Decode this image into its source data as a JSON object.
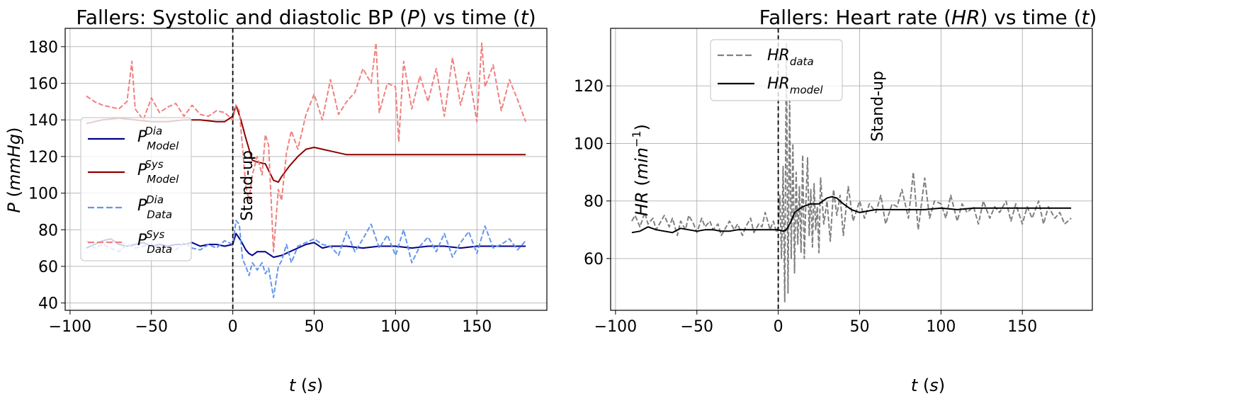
{
  "chart_data": [
    {
      "type": "line",
      "title": "Fallers: Systolic and diastolic BP (P) vs time (t)",
      "xlabel": "t (s)",
      "ylabel": "P (mmHg)",
      "xlim": [
        -103,
        193
      ],
      "ylim": [
        36,
        190
      ],
      "xticks": [
        -100,
        -50,
        0,
        50,
        100,
        150
      ],
      "yticks": [
        40,
        60,
        80,
        100,
        120,
        140,
        160,
        180
      ],
      "grid": true,
      "legend_position": "center-left",
      "annotation": {
        "text": "Stand-up",
        "x": 0
      },
      "series": [
        {
          "name": "P_Model^Dia",
          "color": "#00008b",
          "style": "solid",
          "x": [
            -90,
            -85,
            -80,
            -75,
            -70,
            -65,
            -60,
            -55,
            -50,
            -45,
            -40,
            -35,
            -30,
            -25,
            -20,
            -15,
            -10,
            -5,
            0,
            2,
            5,
            8,
            10,
            12,
            15,
            20,
            25,
            30,
            35,
            40,
            45,
            50,
            55,
            60,
            70,
            80,
            90,
            100,
            110,
            120,
            130,
            140,
            150,
            160,
            170,
            180
          ],
          "y": [
            70,
            72,
            74,
            75,
            72,
            71,
            72,
            73,
            71,
            72,
            71,
            72,
            72,
            73,
            71,
            72,
            72,
            71,
            72,
            78,
            74,
            69,
            67,
            66,
            68,
            68,
            65,
            66,
            68,
            70,
            72,
            73,
            70,
            71,
            71,
            70,
            71,
            71,
            70,
            71,
            71,
            70,
            71,
            71,
            71,
            71
          ]
        },
        {
          "name": "P_Model^Sys",
          "color": "#8b0000",
          "style": "solid",
          "x": [
            -90,
            -80,
            -70,
            -60,
            -50,
            -40,
            -30,
            -20,
            -10,
            -5,
            0,
            2,
            5,
            8,
            10,
            12,
            15,
            20,
            25,
            28,
            30,
            35,
            40,
            45,
            50,
            55,
            60,
            70,
            80,
            90,
            100,
            110,
            120,
            130,
            140,
            150,
            160,
            170,
            180
          ],
          "y": [
            138,
            140,
            141,
            140,
            139,
            139,
            140,
            140,
            139,
            139,
            142,
            148,
            140,
            130,
            124,
            118,
            117,
            116,
            107,
            106,
            109,
            115,
            120,
            124,
            125,
            124,
            123,
            121,
            121,
            121,
            121,
            121,
            121,
            121,
            121,
            121,
            121,
            121,
            121
          ]
        },
        {
          "name": "P_Data^Dia",
          "color": "#6495ed",
          "style": "dashed",
          "x": [
            -90,
            -85,
            -80,
            -75,
            -70,
            -65,
            -60,
            -55,
            -50,
            -45,
            -40,
            -35,
            -30,
            -25,
            -20,
            -15,
            -10,
            -5,
            0,
            2,
            4,
            6,
            8,
            10,
            12,
            15,
            18,
            20,
            22,
            25,
            28,
            30,
            33,
            36,
            40,
            45,
            50,
            55,
            60,
            65,
            70,
            75,
            80,
            85,
            90,
            95,
            100,
            105,
            110,
            115,
            120,
            125,
            130,
            135,
            140,
            145,
            150,
            155,
            160,
            165,
            170,
            175,
            180
          ],
          "y": [
            74,
            70,
            72,
            70,
            68,
            72,
            70,
            71,
            72,
            70,
            71,
            69,
            73,
            70,
            69,
            72,
            70,
            74,
            72,
            85,
            83,
            64,
            60,
            55,
            62,
            58,
            62,
            56,
            59,
            43,
            60,
            63,
            72,
            62,
            71,
            73,
            75,
            72,
            71,
            66,
            79,
            68,
            75,
            83,
            70,
            77,
            66,
            80,
            62,
            71,
            76,
            68,
            78,
            65,
            73,
            79,
            67,
            82,
            70,
            72,
            75,
            69,
            74
          ]
        },
        {
          "name": "P_Data^Sys",
          "color": "#f08080",
          "style": "dashed",
          "x": [
            -90,
            -85,
            -80,
            -75,
            -70,
            -65,
            -62,
            -60,
            -55,
            -50,
            -45,
            -40,
            -35,
            -30,
            -25,
            -20,
            -15,
            -10,
            -5,
            0,
            2,
            4,
            6,
            8,
            10,
            12,
            15,
            18,
            20,
            22,
            25,
            28,
            30,
            33,
            36,
            40,
            45,
            50,
            55,
            60,
            65,
            70,
            75,
            80,
            85,
            88,
            90,
            95,
            100,
            102,
            105,
            110,
            115,
            120,
            125,
            130,
            135,
            140,
            145,
            150,
            153,
            155,
            160,
            165,
            170,
            175,
            180
          ],
          "y": [
            153,
            150,
            148,
            147,
            146,
            150,
            172,
            146,
            140,
            152,
            144,
            147,
            149,
            142,
            148,
            143,
            142,
            145,
            144,
            140,
            148,
            145,
            125,
            104,
            96,
            110,
            120,
            110,
            132,
            126,
            68,
            102,
            96,
            122,
            134,
            124,
            143,
            154,
            140,
            162,
            143,
            150,
            155,
            168,
            160,
            182,
            144,
            160,
            158,
            128,
            172,
            146,
            164,
            150,
            168,
            142,
            174,
            148,
            166,
            139,
            182,
            158,
            170,
            145,
            162,
            151,
            139
          ]
        }
      ]
    },
    {
      "type": "line",
      "title": "Fallers: Heart rate (HR) vs time (t)",
      "xlabel": "t (s)",
      "ylabel": "HR (min^-1)",
      "xlim": [
        -103,
        193
      ],
      "ylim": [
        42,
        140
      ],
      "xticks": [
        -100,
        -50,
        0,
        50,
        100,
        150
      ],
      "yticks": [
        60,
        80,
        100,
        120
      ],
      "grid": true,
      "legend_position": "top-left",
      "annotation": {
        "text": "Stand-up",
        "x": 0
      },
      "series": [
        {
          "name": "HR_data",
          "color": "#808080",
          "style": "dashed",
          "x": [
            -90,
            -88,
            -85,
            -82,
            -80,
            -77,
            -75,
            -72,
            -70,
            -67,
            -65,
            -62,
            -60,
            -57,
            -55,
            -52,
            -50,
            -47,
            -45,
            -42,
            -40,
            -37,
            -35,
            -32,
            -30,
            -27,
            -25,
            -22,
            -20,
            -17,
            -15,
            -12,
            -10,
            -8,
            -5,
            -3,
            -1,
            0,
            1,
            2,
            3,
            4,
            5,
            6,
            7,
            8,
            9,
            10,
            11,
            12,
            13,
            14,
            15,
            16,
            17,
            18,
            19,
            20,
            21,
            22,
            23,
            24,
            25,
            26,
            28,
            30,
            32,
            34,
            36,
            38,
            40,
            43,
            46,
            50,
            53,
            56,
            60,
            63,
            66,
            70,
            73,
            76,
            80,
            83,
            86,
            90,
            93,
            96,
            100,
            103,
            106,
            110,
            113,
            116,
            120,
            123,
            126,
            130,
            133,
            136,
            140,
            143,
            146,
            150,
            153,
            156,
            160,
            163,
            166,
            170,
            173,
            176,
            180
          ],
          "y": [
            73,
            75,
            71,
            76,
            72,
            74,
            70,
            73,
            75,
            71,
            74,
            68,
            73,
            70,
            75,
            72,
            69,
            74,
            71,
            73,
            70,
            72,
            68,
            71,
            73,
            70,
            72,
            68,
            71,
            74,
            69,
            72,
            71,
            76,
            70,
            73,
            69,
            71,
            82,
            60,
            92,
            45,
            135,
            48,
            115,
            60,
            100,
            55,
            90,
            65,
            85,
            62,
            96,
            60,
            80,
            95,
            68,
            84,
            64,
            86,
            70,
            78,
            62,
            88,
            72,
            80,
            66,
            84,
            75,
            82,
            68,
            85,
            73,
            80,
            74,
            79,
            76,
            82,
            72,
            79,
            78,
            84,
            74,
            90,
            70,
            88,
            74,
            80,
            79,
            74,
            82,
            73,
            79,
            76,
            78,
            72,
            80,
            74,
            78,
            76,
            80,
            73,
            79,
            72,
            78,
            74,
            80,
            72,
            78,
            74,
            76,
            72,
            74
          ]
        },
        {
          "name": "HR_model",
          "color": "#000000",
          "style": "solid",
          "x": [
            -90,
            -85,
            -80,
            -75,
            -70,
            -65,
            -60,
            -55,
            -50,
            -45,
            -40,
            -35,
            -30,
            -25,
            -20,
            -15,
            -10,
            -5,
            0,
            3,
            5,
            8,
            10,
            15,
            20,
            25,
            30,
            33,
            36,
            40,
            45,
            50,
            55,
            60,
            70,
            80,
            90,
            100,
            110,
            120,
            130,
            140,
            150,
            160,
            170,
            180
          ],
          "y": [
            69,
            69.5,
            71,
            70,
            69.5,
            69,
            70.5,
            70,
            69.5,
            70,
            70,
            69.5,
            69.5,
            70,
            70,
            70,
            70,
            70,
            70,
            69.5,
            70,
            73,
            76,
            78,
            79,
            79,
            81,
            81.5,
            81,
            79,
            77,
            76,
            76.5,
            77,
            77,
            77,
            77,
            77.5,
            77,
            77.5,
            77.5,
            77.5,
            77.5,
            77.5,
            77.5,
            77.5
          ]
        }
      ]
    }
  ]
}
